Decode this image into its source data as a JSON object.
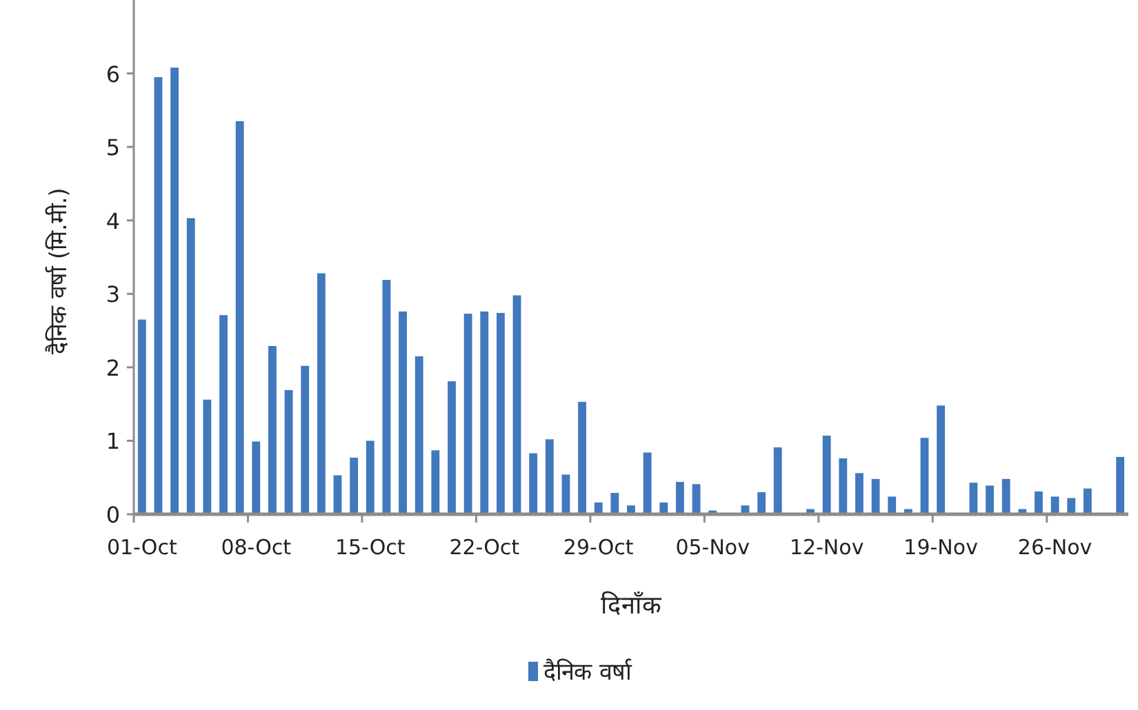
{
  "chart_data": {
    "type": "bar",
    "xlabel": "दिनाँक",
    "ylabel": "दैनिक वर्षा (मि.मी.)",
    "categories": [
      "01-Oct",
      null,
      null,
      null,
      null,
      null,
      null,
      "08-Oct",
      null,
      null,
      null,
      null,
      null,
      null,
      "15-Oct",
      null,
      null,
      null,
      null,
      null,
      null,
      "22-Oct",
      null,
      null,
      null,
      null,
      null,
      null,
      "29-Oct",
      null,
      null,
      null,
      null,
      null,
      null,
      "05-Nov",
      null,
      null,
      null,
      null,
      null,
      null,
      "12-Nov",
      null,
      null,
      null,
      null,
      null,
      null,
      "19-Nov",
      null,
      null,
      null,
      null,
      null,
      null,
      "26-Nov",
      null,
      null,
      null,
      null
    ],
    "series": [
      {
        "name": "दैनिक वर्षा",
        "color": "#4178be",
        "values": [
          2.65,
          5.95,
          6.08,
          4.03,
          1.56,
          2.71,
          5.35,
          0.99,
          2.29,
          1.69,
          2.02,
          3.28,
          0.53,
          0.77,
          1.0,
          3.19,
          2.76,
          2.15,
          0.87,
          1.81,
          2.73,
          2.76,
          2.74,
          2.98,
          0.83,
          1.02,
          0.54,
          1.53,
          0.16,
          0.29,
          0.12,
          0.84,
          0.16,
          0.44,
          0.41,
          0.05,
          0,
          0.12,
          0.3,
          0.91,
          0.01,
          0.07,
          1.07,
          0.76,
          0.56,
          0.48,
          0.24,
          0.07,
          1.04,
          1.48,
          0,
          0.43,
          0.39,
          0.48,
          0.07,
          0.31,
          0.24,
          0.22,
          0.35,
          0,
          0.78
        ]
      }
    ],
    "ylim": [
      0,
      7
    ],
    "yticks": [
      0,
      1,
      2,
      3,
      4,
      5,
      6
    ],
    "legend": "bottom"
  }
}
